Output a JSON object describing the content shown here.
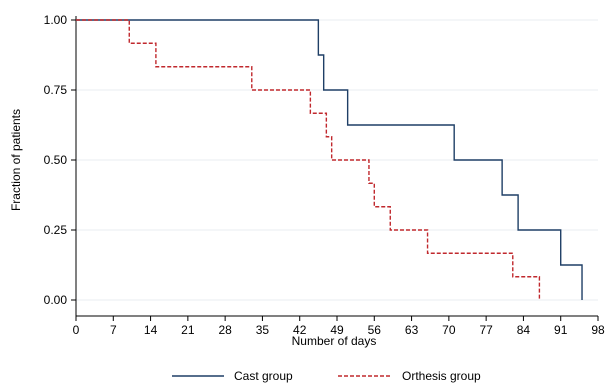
{
  "chart_data": {
    "type": "line",
    "step": true,
    "xlabel": "Number of days",
    "ylabel": "Fraction of patients",
    "xlim": [
      0,
      98
    ],
    "ylim": [
      0,
      1
    ],
    "x_ticks": [
      0,
      7,
      14,
      21,
      28,
      35,
      42,
      49,
      56,
      63,
      70,
      77,
      84,
      91,
      98
    ],
    "y_ticks": [
      0,
      0.25,
      0.5,
      0.75,
      1
    ],
    "y_tick_labels": [
      "0.00",
      "0.25",
      "0.50",
      "0.75",
      "1.00"
    ],
    "grid": "horizontal",
    "legend": "bottom",
    "series": [
      {
        "name": "Cast group",
        "color": "#1f3f66",
        "dash": "solid",
        "x": [
          0,
          45,
          45.5,
          46.5,
          51,
          71,
          80,
          83,
          91,
          95
        ],
        "y": [
          1,
          1,
          0.875,
          0.75,
          0.625,
          0.5,
          0.375,
          0.25,
          0.125,
          0
        ]
      },
      {
        "name": "Orthesis group",
        "color": "#c0282d",
        "dash": "dashed",
        "x": [
          0,
          10,
          15,
          33,
          44,
          47,
          48,
          55,
          56,
          59,
          66,
          82,
          87
        ],
        "y": [
          1,
          0.917,
          0.833,
          0.75,
          0.667,
          0.583,
          0.5,
          0.417,
          0.333,
          0.25,
          0.167,
          0.083,
          0
        ]
      }
    ]
  }
}
